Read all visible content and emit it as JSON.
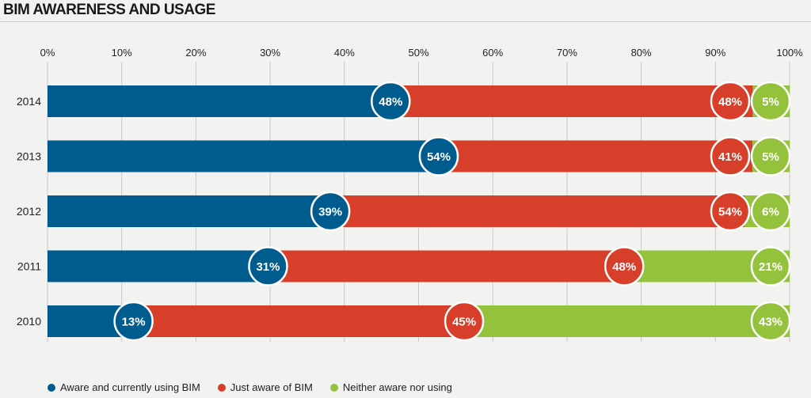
{
  "title": "BIM AWARENESS AND USAGE",
  "colors": {
    "series_0": "#005b8e",
    "series_1": "#d83f2b",
    "series_2": "#95c23d",
    "grid": "#c8c8c8",
    "text": "#222222"
  },
  "chart_data": {
    "type": "bar",
    "orientation": "horizontal",
    "stacked": true,
    "categories": [
      "2014",
      "2013",
      "2012",
      "2011",
      "2010"
    ],
    "series": [
      {
        "name": "Aware and currently using BIM",
        "values": [
          48,
          54,
          39,
          31,
          13
        ],
        "labels": [
          "48%",
          "54%",
          "39%",
          "31%",
          "13%"
        ]
      },
      {
        "name": "Just aware of BIM",
        "values": [
          48,
          41,
          54,
          48,
          45
        ],
        "labels": [
          "48%",
          "41%",
          "54%",
          "48%",
          "45%"
        ]
      },
      {
        "name": "Neither aware nor using",
        "values": [
          5,
          5,
          6,
          21,
          43
        ],
        "labels": [
          "5%",
          "5%",
          "6%",
          "21%",
          "43%"
        ]
      }
    ],
    "xlim": [
      0,
      100
    ],
    "xticks": [
      "0%",
      "10%",
      "20%",
      "30%",
      "40%",
      "50%",
      "60%",
      "70%",
      "80%",
      "90%",
      "100%"
    ],
    "grid": true,
    "legend_position": "bottom"
  }
}
